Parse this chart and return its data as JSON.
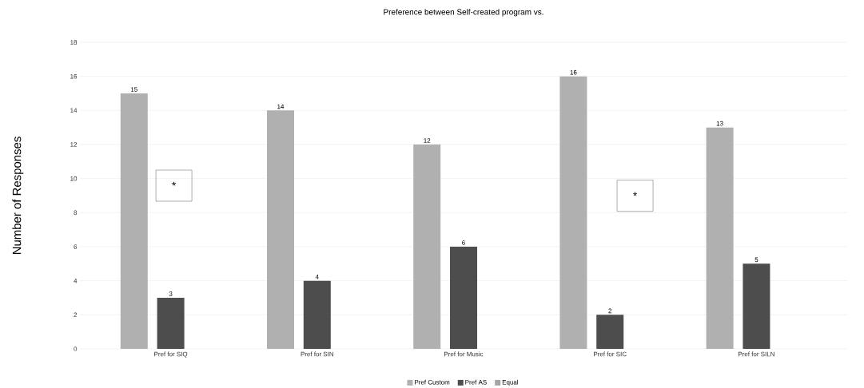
{
  "chart_data": {
    "type": "bar",
    "title": "Preference between Self-created program vs.",
    "ylabel": "Number of Responses",
    "categories": [
      "Pref for SIQ",
      "Pref for SIN",
      "Pref for Music",
      "Pref for SIC",
      "Pref for SILN"
    ],
    "series": [
      {
        "name": "Pref Custom",
        "color": "#b0b0b0",
        "values": [
          15,
          14,
          12,
          16,
          13
        ]
      },
      {
        "name": "Pref AS",
        "color": "#4d4d4d",
        "values": [
          3,
          4,
          6,
          2,
          5
        ]
      },
      {
        "name": "Equal",
        "color": "#a5a5a5",
        "values": [
          null,
          null,
          null,
          null,
          null
        ]
      }
    ],
    "ylim": [
      0,
      18
    ],
    "yticks": [
      0,
      2,
      4,
      6,
      8,
      10,
      12,
      14,
      16,
      18
    ],
    "grid": "y",
    "legend": "bottom",
    "data_labels": true,
    "annotations": [
      "*",
      "*"
    ]
  }
}
